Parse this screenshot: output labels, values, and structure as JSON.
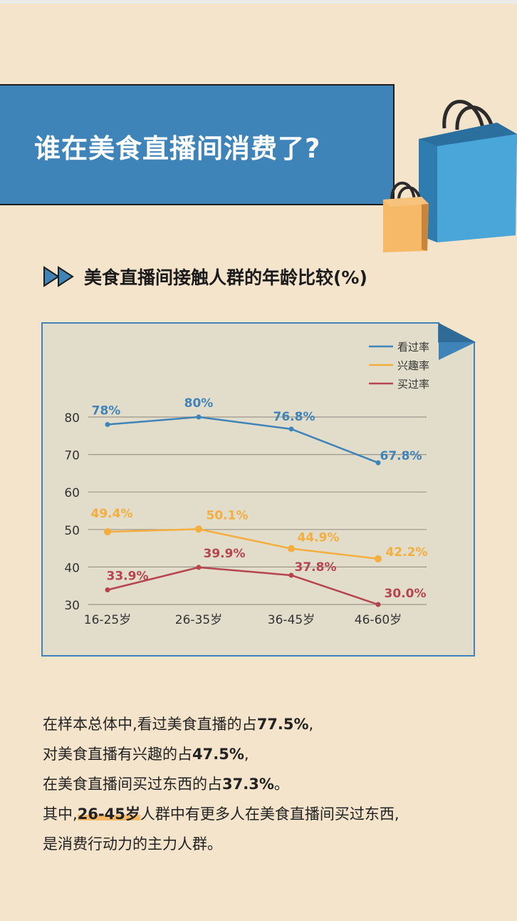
{
  "page": {
    "title": "谁在美食直播间消费了?",
    "section_title": "美食直播间接触人群的年龄比较(%)"
  },
  "chart_data": {
    "type": "line",
    "title": "美食直播间接触人群的年龄比较(%)",
    "categories": [
      "16-25岁",
      "26-35岁",
      "36-45岁",
      "46-60岁"
    ],
    "series": [
      {
        "name": "看过率",
        "values": [
          78,
          80,
          76.8,
          67.8
        ],
        "labels": [
          "78%",
          "80%",
          "76.8%",
          "67.8%"
        ],
        "color": "#3f84b8"
      },
      {
        "name": "兴趣率",
        "values": [
          49.4,
          50.1,
          44.9,
          42.2
        ],
        "labels": [
          "49.4%",
          "50.1%",
          "44.9%",
          "42.2%"
        ],
        "color": "#f3ae3e"
      },
      {
        "name": "买过率",
        "values": [
          33.9,
          39.9,
          37.8,
          30.0
        ],
        "labels": [
          "33.9%",
          "39.9%",
          "37.8%",
          "30.0%"
        ],
        "color": "#b5444e"
      }
    ],
    "yticks": [
      30,
      40,
      50,
      60,
      70,
      80
    ],
    "ylim": [
      30,
      80
    ],
    "grid": true,
    "legend_position": "top-right"
  },
  "summary": {
    "line1_a": "在样本总体中,看过美食直播的占",
    "line1_num": "77.5%",
    "line1_b": ",",
    "line2_a": "对美食直播有兴趣的占",
    "line2_num": "47.5%",
    "line2_b": ",",
    "line3_a": "在美食直播间买过东西的占",
    "line3_num": "37.3%",
    "line3_b": "。",
    "line4_a": "其中,",
    "line4_hl": "26-45岁",
    "line4_b": "人群中有更多人在美食直播间买过东西,",
    "line5": "是消费行动力的主力人群。"
  },
  "colors": {
    "background": "#f5e4cc",
    "banner": "#3f84b8",
    "chart_bg": "#e2ddcb",
    "bag_blue": "#3f9bd0",
    "bag_orange": "#f6b968"
  }
}
